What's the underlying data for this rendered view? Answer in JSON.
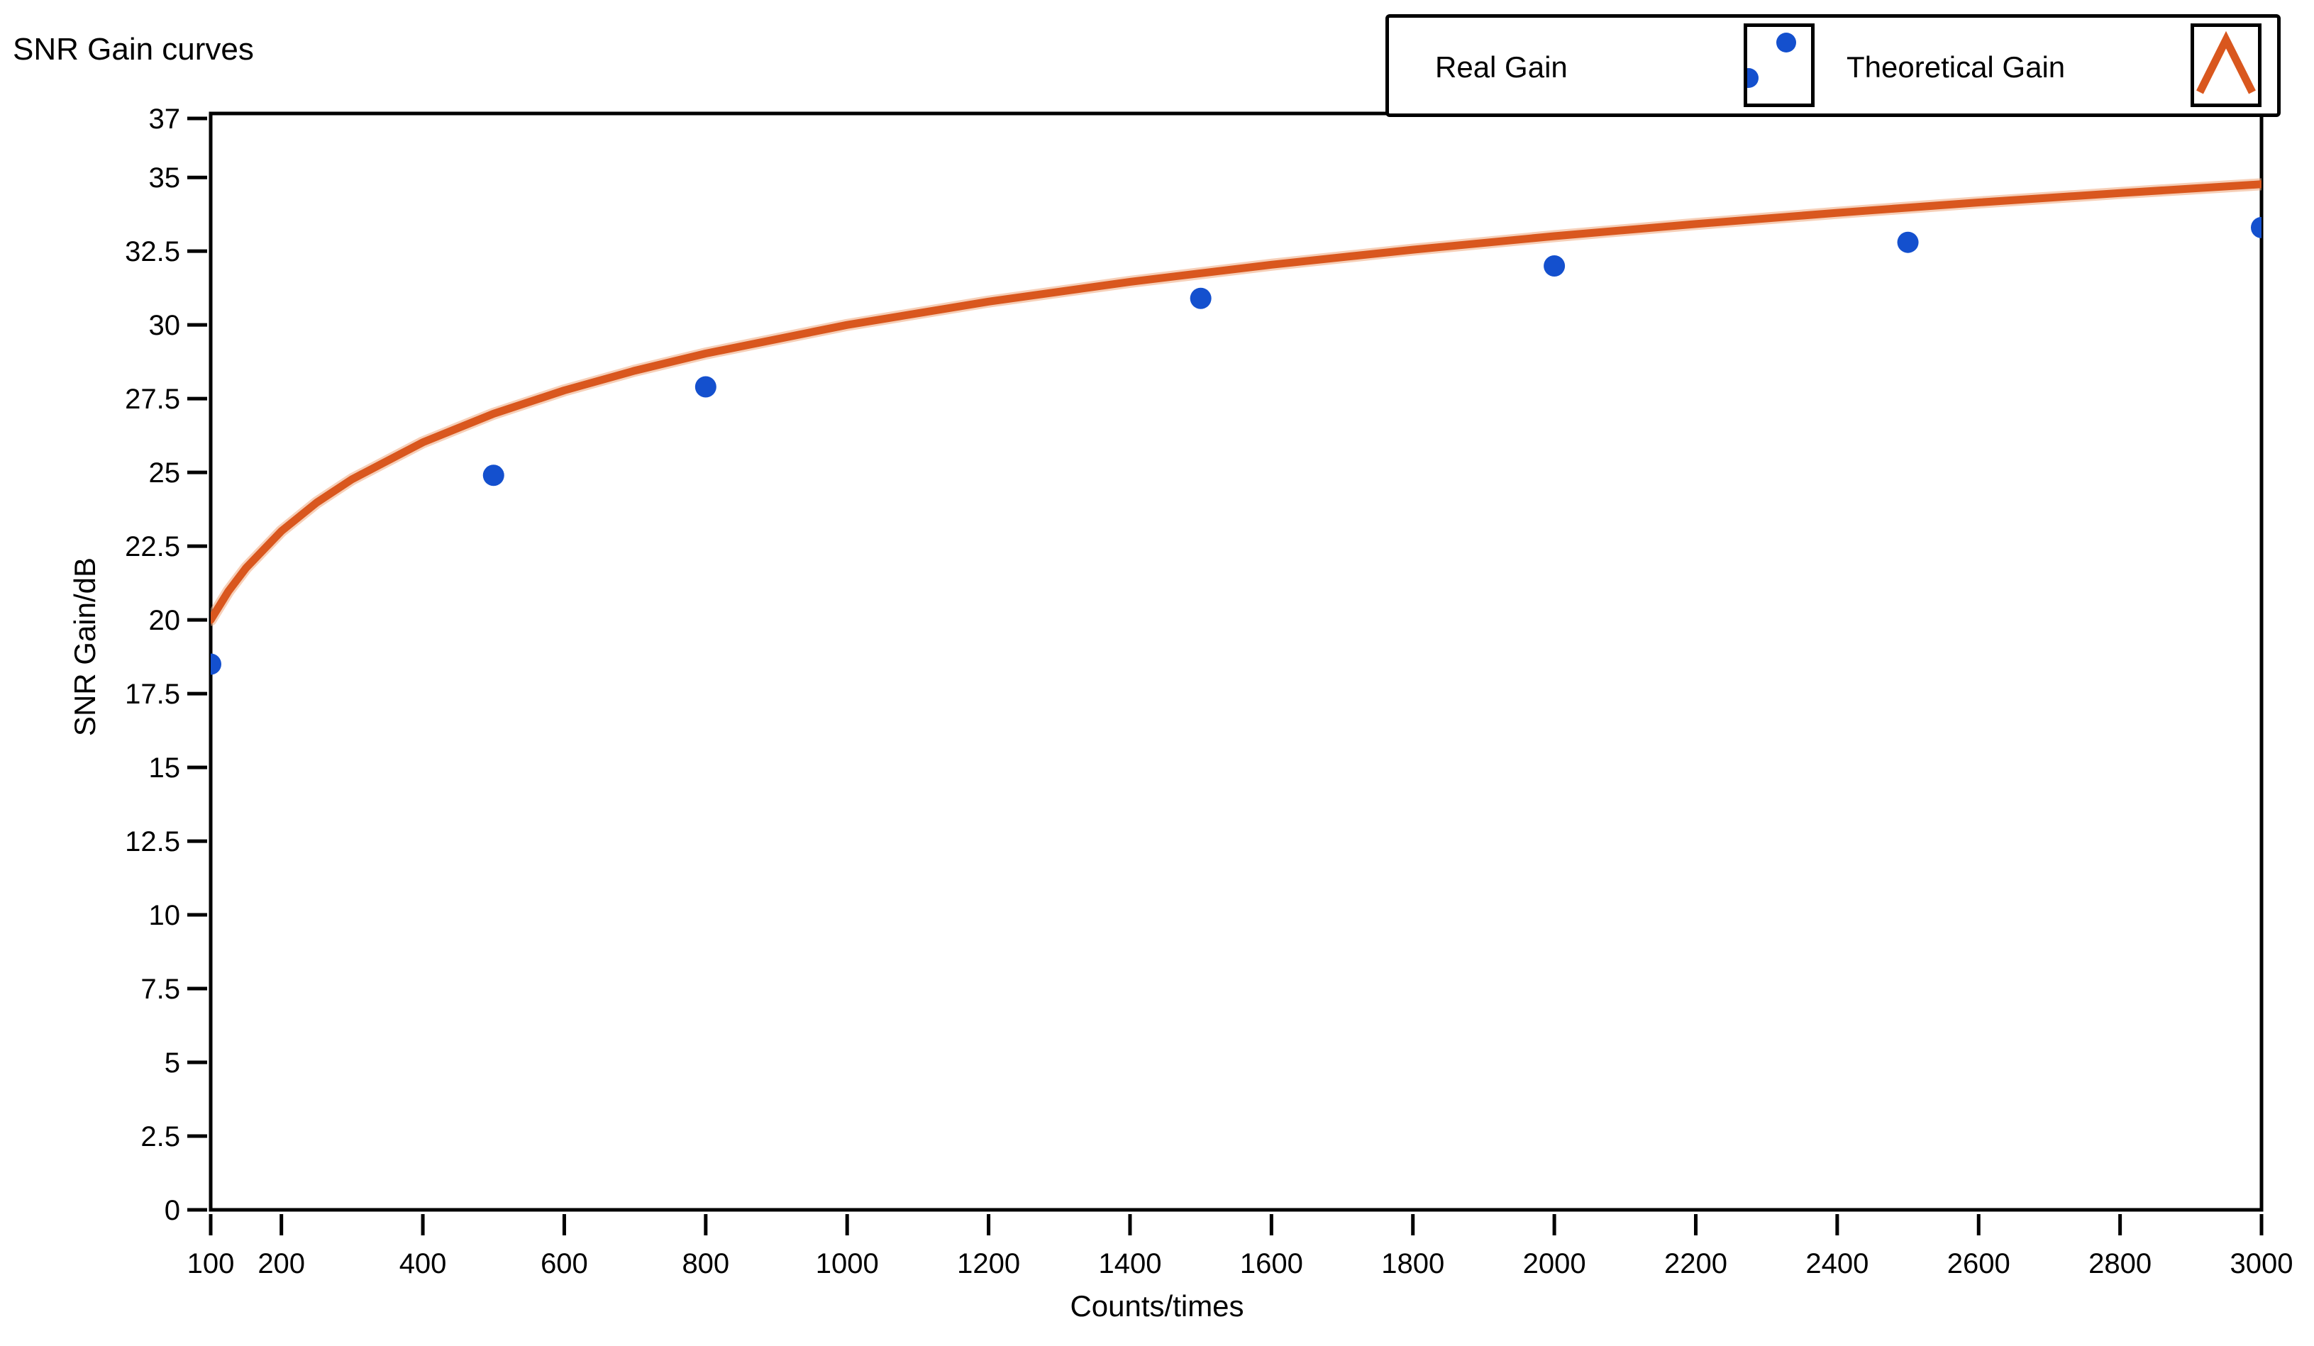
{
  "chart_data": {
    "type": "scatter",
    "title": "SNR Gain curves",
    "xlabel": "Counts/times",
    "ylabel": "SNR Gain/dB",
    "xlim": [
      100,
      3000
    ],
    "ylim": [
      0,
      37
    ],
    "x_ticks": [
      100,
      200,
      400,
      600,
      800,
      1000,
      1200,
      1400,
      1600,
      1800,
      2000,
      2200,
      2400,
      2600,
      2800,
      3000
    ],
    "y_ticks": [
      37,
      35,
      32.5,
      30,
      27.5,
      25,
      22.5,
      20,
      17.5,
      15,
      12.5,
      10,
      7.5,
      5,
      2.5,
      0
    ],
    "grid": false,
    "legend_position": "top-right",
    "axis_color": "#000000",
    "background_color": "#ffffff",
    "series": [
      {
        "name": "Real Gain",
        "type": "scatter",
        "color": "#1450CE",
        "marker": "dot",
        "points": [
          [
            100,
            18.5
          ],
          [
            500,
            24.9
          ],
          [
            800,
            27.9
          ],
          [
            1500,
            30.9
          ],
          [
            2000,
            32.0
          ],
          [
            2500,
            32.8
          ],
          [
            3000,
            33.3
          ]
        ]
      },
      {
        "name": "Theoretical Gain",
        "type": "line",
        "color": "#D9571E",
        "halo_color": "#EFA77E",
        "formula": "10*log10(x)",
        "points": [
          [
            100,
            20.0
          ],
          [
            125,
            20.97
          ],
          [
            150,
            21.76
          ],
          [
            200,
            23.01
          ],
          [
            250,
            23.98
          ],
          [
            300,
            24.77
          ],
          [
            400,
            26.02
          ],
          [
            500,
            26.99
          ],
          [
            600,
            27.78
          ],
          [
            700,
            28.45
          ],
          [
            800,
            29.03
          ],
          [
            1000,
            30.0
          ],
          [
            1200,
            30.79
          ],
          [
            1400,
            31.46
          ],
          [
            1600,
            32.04
          ],
          [
            1800,
            32.55
          ],
          [
            2000,
            33.01
          ],
          [
            2200,
            33.42
          ],
          [
            2400,
            33.8
          ],
          [
            2600,
            34.15
          ],
          [
            2800,
            34.47
          ],
          [
            3000,
            34.77
          ]
        ]
      }
    ]
  }
}
